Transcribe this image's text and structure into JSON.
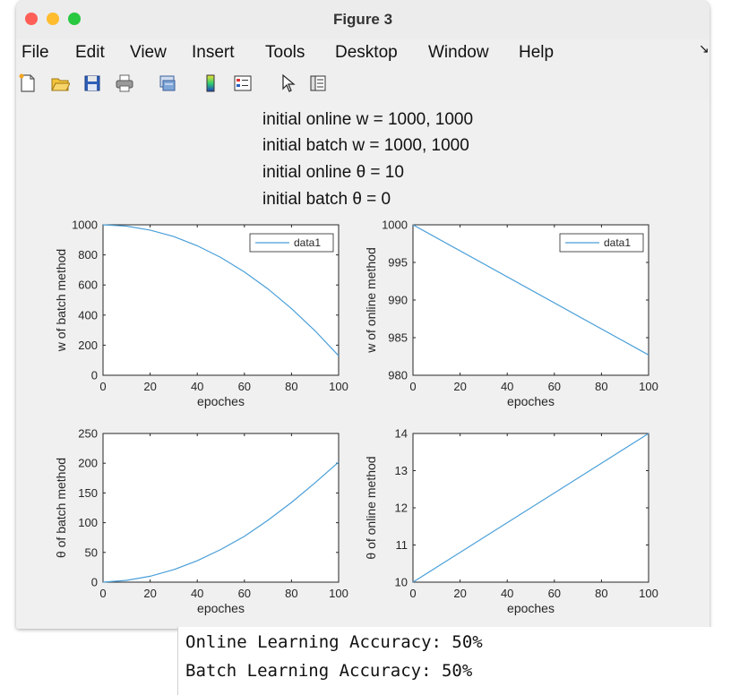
{
  "window": {
    "title": "Figure 3",
    "colors": {
      "close": "#ff5f57",
      "minimize": "#febc2e",
      "zoom": "#28c840"
    }
  },
  "menubar": {
    "items": [
      {
        "label": "File"
      },
      {
        "label": "Edit"
      },
      {
        "label": "View"
      },
      {
        "label": "Insert"
      },
      {
        "label": "Tools"
      },
      {
        "label": "Desktop"
      },
      {
        "label": "Window"
      },
      {
        "label": "Help"
      }
    ]
  },
  "toolbar": {
    "icons": [
      "new-figure-icon",
      "open-file-icon",
      "save-icon",
      "print-icon",
      "link-plot-icon",
      "colorbar-icon",
      "legend-icon",
      "pointer-icon",
      "property-editor-icon"
    ]
  },
  "figure": {
    "title_lines": [
      "initial online w = 1000, 1000",
      "initial batch w = 1000, 1000",
      "initial online θ = 10",
      "initial batch θ = 0"
    ]
  },
  "chart_data": [
    {
      "type": "line",
      "xlabel": "epoches",
      "ylabel": "w of batch method",
      "xlim": [
        0,
        100
      ],
      "ylim": [
        0,
        1000
      ],
      "xticks": [
        "0",
        "20",
        "40",
        "60",
        "80",
        "100"
      ],
      "yticks": [
        "0",
        "200",
        "400",
        "600",
        "800",
        "1000"
      ],
      "legend": "top-right",
      "series": [
        {
          "name": "data1",
          "color": "#4a9fd8",
          "x": [
            0,
            10,
            20,
            30,
            40,
            50,
            60,
            70,
            80,
            90,
            100
          ],
          "y": [
            1000,
            991,
            965,
            922,
            861,
            783,
            687,
            574,
            443,
            295,
            130
          ]
        }
      ]
    },
    {
      "type": "line",
      "xlabel": "epoches",
      "ylabel": "w of online method",
      "xlim": [
        0,
        100
      ],
      "ylim": [
        980,
        1000
      ],
      "xticks": [
        "0",
        "20",
        "40",
        "60",
        "80",
        "100"
      ],
      "yticks": [
        "980",
        "985",
        "990",
        "995",
        "1000"
      ],
      "legend": "top-right",
      "series": [
        {
          "name": "data1",
          "color": "#4a9fd8",
          "x": [
            0,
            100
          ],
          "y": [
            1000,
            982.7
          ]
        }
      ]
    },
    {
      "type": "line",
      "xlabel": "epoches",
      "ylabel": "θ of batch method",
      "xlim": [
        0,
        100
      ],
      "ylim": [
        0,
        250
      ],
      "xticks": [
        "0",
        "20",
        "40",
        "60",
        "80",
        "100"
      ],
      "yticks": [
        "0",
        "50",
        "100",
        "150",
        "200",
        "250"
      ],
      "series": [
        {
          "color": "#4a9fd8",
          "x": [
            0,
            10,
            20,
            30,
            40,
            50,
            60,
            70,
            80,
            90,
            100
          ],
          "y": [
            0,
            3,
            10,
            21,
            36,
            55,
            77,
            104,
            134,
            167,
            202
          ]
        }
      ]
    },
    {
      "type": "line",
      "xlabel": "epoches",
      "ylabel": "θ of online method",
      "xlim": [
        0,
        100
      ],
      "ylim": [
        10,
        14
      ],
      "xticks": [
        "0",
        "20",
        "40",
        "60",
        "80",
        "100"
      ],
      "yticks": [
        "10",
        "11",
        "12",
        "13",
        "14"
      ],
      "series": [
        {
          "color": "#4a9fd8",
          "x": [
            0,
            100
          ],
          "y": [
            10,
            14
          ]
        }
      ]
    }
  ],
  "console": {
    "lines": [
      "Online Learning Accuracy: 50%",
      "Batch Learning Accuracy: 50%"
    ]
  }
}
